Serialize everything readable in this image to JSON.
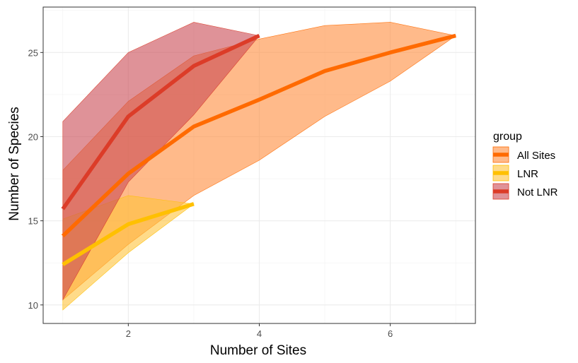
{
  "chart_data": {
    "type": "area",
    "xlabel": "Number of Sites",
    "ylabel": "Number of Species",
    "xlim": [
      0.7,
      7.3
    ],
    "ylim": [
      8.9,
      27.7
    ],
    "xticks": [
      2,
      4,
      6
    ],
    "yticks": [
      10,
      15,
      20,
      25
    ],
    "grid": true,
    "legend": {
      "title": "group",
      "placement": "right"
    },
    "series": [
      {
        "name": "All Sites",
        "color": "#ff6a00",
        "ribbon_color": "#ff8c3c",
        "x": [
          1,
          2,
          3,
          4,
          5,
          6,
          7
        ],
        "mean": [
          14.1,
          17.8,
          20.6,
          22.2,
          23.9,
          25.0,
          26.0
        ],
        "lower": [
          10.3,
          13.6,
          16.5,
          18.6,
          21.2,
          23.3,
          26.0
        ],
        "upper": [
          18.0,
          22.1,
          24.8,
          25.8,
          26.6,
          26.8,
          26.0
        ]
      },
      {
        "name": "LNR",
        "color": "#ffc000",
        "ribbon_color": "#ffc33a",
        "x": [
          1,
          2,
          3
        ],
        "mean": [
          12.4,
          14.8,
          16.0
        ],
        "lower": [
          9.7,
          13.1,
          16.0
        ],
        "upper": [
          15.1,
          16.5,
          16.0
        ]
      },
      {
        "name": "Not LNR",
        "color": "#dc3c28",
        "ribbon_color": "#c94a54",
        "x": [
          1,
          2,
          3,
          4
        ],
        "mean": [
          15.7,
          21.2,
          24.2,
          26.0
        ],
        "lower": [
          10.3,
          17.3,
          21.3,
          26.0
        ],
        "upper": [
          20.9,
          25.0,
          26.8,
          26.0
        ]
      }
    ]
  }
}
